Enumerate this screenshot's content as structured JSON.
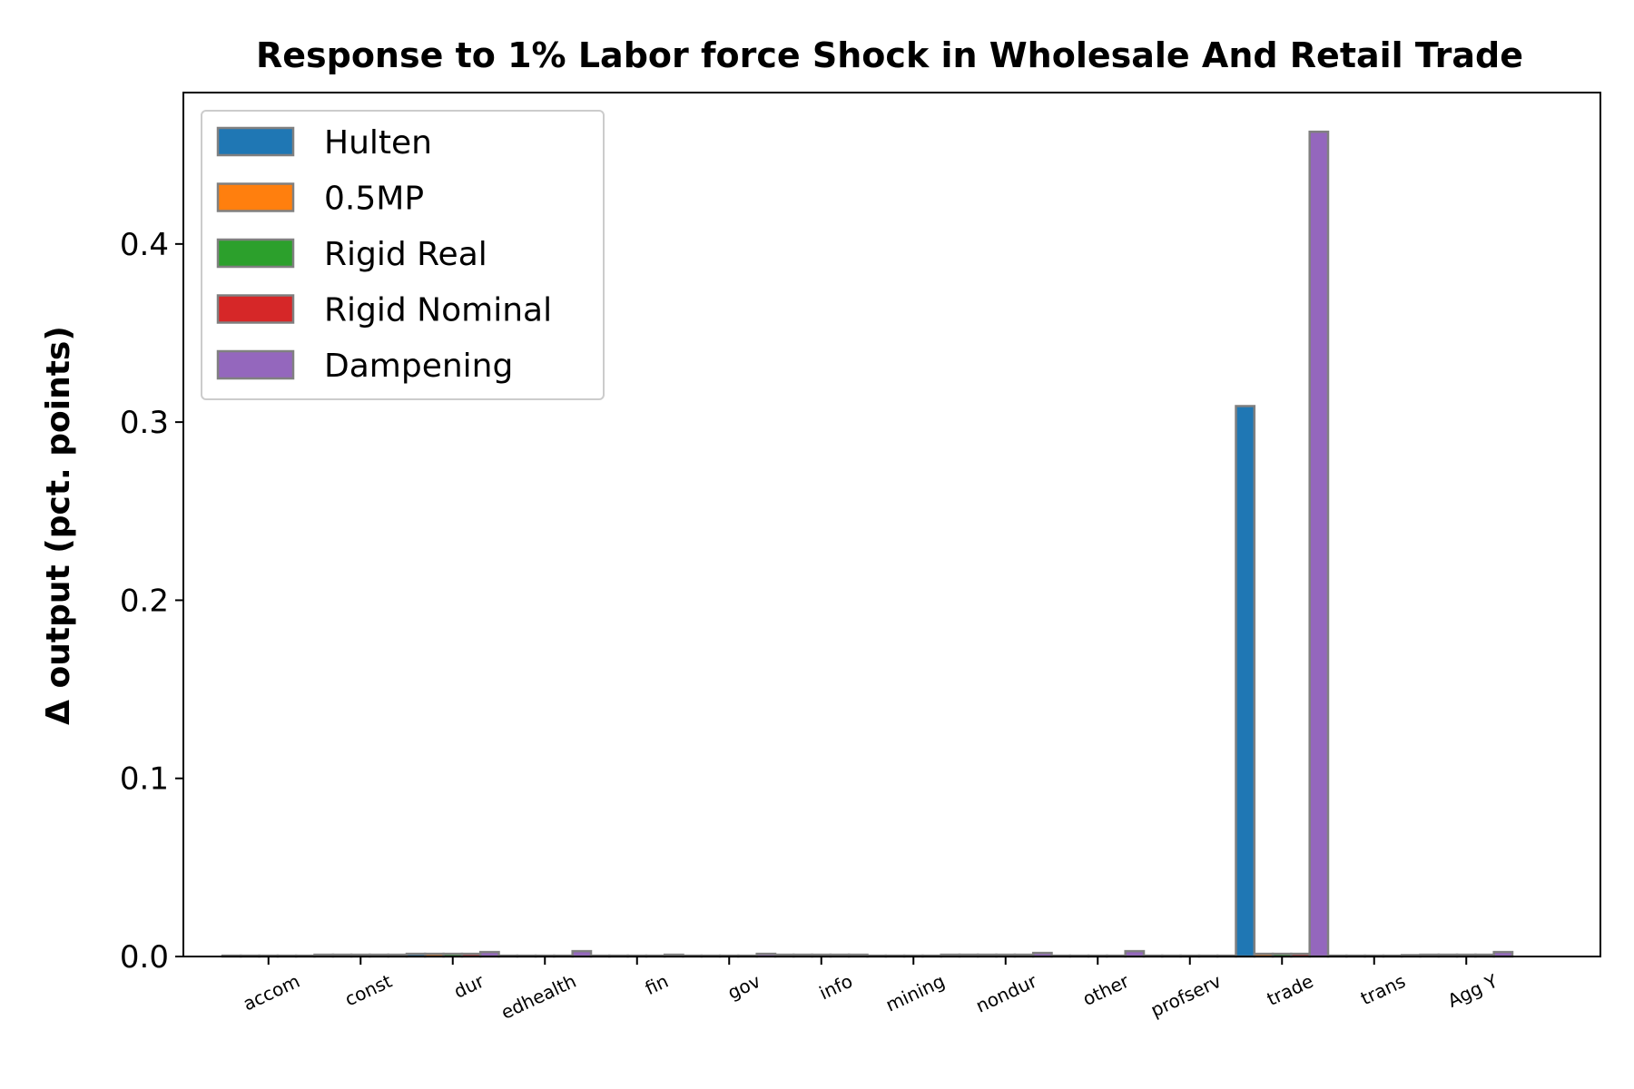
{
  "chart_data": {
    "type": "bar",
    "title": "Response to 1% Labor force Shock in Wholesale And Retail Trade",
    "xlabel": "",
    "ylabel": "Δ output (pct. points)",
    "ylim": [
      0,
      0.485
    ],
    "yticks": [
      0.0,
      0.1,
      0.2,
      0.3,
      0.4
    ],
    "ytick_labels": [
      "0.0",
      "0.1",
      "0.2",
      "0.3",
      "0.4"
    ],
    "grid": false,
    "legend_position": "top-left",
    "categories": [
      "accom",
      "const",
      "dur",
      "edhealth",
      "fin",
      "gov",
      "info",
      "mining",
      "nondur",
      "other",
      "profserv",
      "trade",
      "trans",
      "Agg Y"
    ],
    "series": [
      {
        "name": "Hulten",
        "color": "#1f77b4",
        "values": [
          0.0005,
          0.001,
          0.0015,
          0.0005,
          0.0005,
          0.0005,
          0.001,
          0.0005,
          0.001,
          0.0005,
          0.0005,
          0.309,
          0.0005,
          0.001
        ]
      },
      {
        "name": "0.5MP",
        "color": "#ff7f0e",
        "values": [
          0.0005,
          0.001,
          0.0015,
          0.0005,
          0.0005,
          0.0005,
          0.001,
          0.0005,
          0.001,
          0.0005,
          0.0005,
          0.0015,
          0.0005,
          0.001
        ]
      },
      {
        "name": "Rigid Real",
        "color": "#2ca02c",
        "values": [
          0.0005,
          0.001,
          0.0015,
          0.0005,
          0.0005,
          0.0005,
          0.001,
          0.0005,
          0.001,
          0.0005,
          0.0005,
          0.0015,
          0.0005,
          0.001
        ]
      },
      {
        "name": "Rigid Nominal",
        "color": "#d62728",
        "values": [
          0.0005,
          0.001,
          0.0015,
          0.0005,
          0.0005,
          0.0005,
          0.001,
          0.0005,
          0.001,
          0.0005,
          0.0005,
          0.0015,
          0.0005,
          0.001
        ]
      },
      {
        "name": "Dampening",
        "color": "#9467bd",
        "values": [
          0.0005,
          0.001,
          0.0025,
          0.003,
          0.001,
          0.0015,
          0.001,
          0.001,
          0.002,
          0.003,
          0.0005,
          0.463,
          0.0008,
          0.0025
        ]
      }
    ]
  }
}
